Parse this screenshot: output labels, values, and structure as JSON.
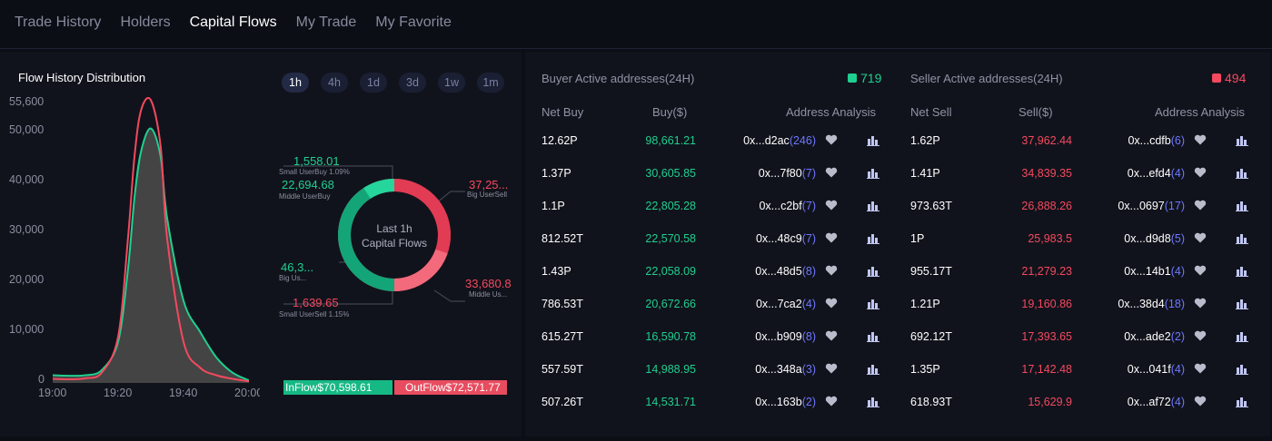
{
  "tabs": [
    "Trade History",
    "Holders",
    "Capital Flows",
    "My Trade",
    "My Favorite"
  ],
  "active_tab": "Capital Flows",
  "flow_chart": {
    "title": "Flow History Distribution",
    "y_ticks": [
      "55,600",
      "50,000",
      "40,000",
      "30,000",
      "20,000",
      "10,000",
      "0"
    ],
    "x_ticks": [
      "19:00",
      "19:20",
      "19:40",
      "20:00"
    ],
    "colors": {
      "inflow": "#1fcf8f",
      "outflow": "#f4495e",
      "fill": "#4a4a4a"
    }
  },
  "chart_data": {
    "type": "area",
    "title": "Flow History Distribution",
    "xlabel": "",
    "ylabel": "",
    "x": [
      "19:00",
      "19:05",
      "19:10",
      "19:15",
      "19:20",
      "19:23",
      "19:25",
      "19:27",
      "19:30",
      "19:33",
      "19:35",
      "19:40",
      "19:45",
      "19:50",
      "19:55",
      "20:00"
    ],
    "series": [
      {
        "values": [
          1500,
          1400,
          1500,
          2500,
          8000,
          22000,
          36000,
          45000,
          49500,
          44000,
          32000,
          16000,
          10000,
          5000,
          2000,
          500
        ]
      },
      {
        "values": [
          800,
          700,
          900,
          2000,
          9000,
          28000,
          44000,
          53000,
          55000,
          46000,
          28000,
          8000,
          3000,
          1500,
          800,
          300
        ]
      }
    ],
    "ylim": [
      0,
      55600
    ],
    "grid": false,
    "legend": "none"
  },
  "periods": [
    "1h",
    "4h",
    "1d",
    "3d",
    "1w",
    "1m"
  ],
  "active_period": "1h",
  "donut": {
    "center_line1": "Last 1h",
    "center_line2": "Capital Flows",
    "labels": {
      "small_buy_value": "1,558.01",
      "small_buy_label": "Small UserBuy 1.09%",
      "middle_buy_value": "22,694.68",
      "middle_buy_label": "Middle UserBuy",
      "big_buy_value": "46,3...",
      "big_buy_label": "Big Us...",
      "small_sell_value": "1,639.65",
      "small_sell_label": "Small UserSell 1.15%",
      "big_sell_value": "37,25...",
      "big_sell_label": "Big UserSell",
      "middle_sell_value": "33,680.8",
      "middle_sell_label": "Middle Us..."
    },
    "inflow": "InFlow$70,598.61",
    "outflow": "OutFlow$72,571.77"
  },
  "buyer": {
    "title": "Buyer Active addresses(24H)",
    "count": "719",
    "headers": [
      "Net Buy",
      "Buy($)",
      "Address Analysis"
    ],
    "rows": [
      {
        "net": "12.62P",
        "amount": "98,661.21",
        "addr": "0x...d2ac",
        "cnt": "(246)"
      },
      {
        "net": "1.37P",
        "amount": "30,605.85",
        "addr": "0x...7f80",
        "cnt": "(7)"
      },
      {
        "net": "1.1P",
        "amount": "22,805.28",
        "addr": "0x...c2bf",
        "cnt": "(7)"
      },
      {
        "net": "812.52T",
        "amount": "22,570.58",
        "addr": "0x...48c9",
        "cnt": "(7)"
      },
      {
        "net": "1.43P",
        "amount": "22,058.09",
        "addr": "0x...48d5",
        "cnt": "(8)"
      },
      {
        "net": "786.53T",
        "amount": "20,672.66",
        "addr": "0x...7ca2",
        "cnt": "(4)"
      },
      {
        "net": "615.27T",
        "amount": "16,590.78",
        "addr": "0x...b909",
        "cnt": "(8)"
      },
      {
        "net": "557.59T",
        "amount": "14,988.95",
        "addr": "0x...348a",
        "cnt": "(3)"
      },
      {
        "net": "507.26T",
        "amount": "14,531.71",
        "addr": "0x...163b",
        "cnt": "(2)"
      }
    ]
  },
  "seller": {
    "title": "Seller Active addresses(24H)",
    "count": "494",
    "headers": [
      "Net Sell",
      "Sell($)",
      "Address Analysis"
    ],
    "rows": [
      {
        "net": "1.62P",
        "amount": "37,962.44",
        "addr": "0x...cdfb",
        "cnt": "(6)"
      },
      {
        "net": "1.41P",
        "amount": "34,839.35",
        "addr": "0x...efd4",
        "cnt": "(4)"
      },
      {
        "net": "973.63T",
        "amount": "26,888.26",
        "addr": "0x...0697",
        "cnt": "(17)"
      },
      {
        "net": "1P",
        "amount": "25,983.5",
        "addr": "0x...d9d8",
        "cnt": "(5)"
      },
      {
        "net": "955.17T",
        "amount": "21,279.23",
        "addr": "0x...14b1",
        "cnt": "(4)"
      },
      {
        "net": "1.21P",
        "amount": "19,160.86",
        "addr": "0x...38d4",
        "cnt": "(18)"
      },
      {
        "net": "692.12T",
        "amount": "17,393.65",
        "addr": "0x...ade2",
        "cnt": "(2)"
      },
      {
        "net": "1.35P",
        "amount": "17,142.48",
        "addr": "0x...041f",
        "cnt": "(4)"
      },
      {
        "net": "618.93T",
        "amount": "15,629.9",
        "addr": "0x...af72",
        "cnt": "(4)"
      }
    ]
  },
  "colors": {
    "buy": "#1fcf8f",
    "sell": "#f4495e",
    "link": "#6d78ff",
    "icon": "#c0c6f2"
  },
  "icons": {
    "favorite": "heart-icon",
    "analysis": "bar-chart-icon"
  }
}
